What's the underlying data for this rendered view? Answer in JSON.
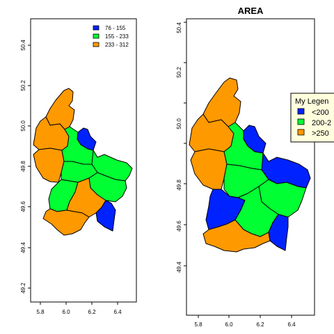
{
  "left_map": {
    "title": "",
    "x_ticks": [
      "5.8",
      "6.0",
      "6.2",
      "6.4"
    ],
    "y_ticks": [
      "49.2",
      "49.4",
      "49.6",
      "49.8",
      "50.0",
      "50.2",
      "50.4"
    ],
    "legend": {
      "title": "",
      "entries": [
        {
          "label": "76 - 155",
          "color": "#0022FF"
        },
        {
          "label": "155 - 233",
          "color": "#00FF33"
        },
        {
          "label": "233 - 312",
          "color": "#FF9900"
        }
      ]
    }
  },
  "right_map": {
    "title": "AREA",
    "x_ticks": [
      "5.8",
      "6.0",
      "6.2",
      "6.4"
    ],
    "y_ticks": [
      "49.4",
      "49.6",
      "49.8",
      "50.0",
      "50.2",
      "50.4"
    ],
    "legend": {
      "title": "My Legen",
      "entries": [
        {
          "label": "<200",
          "color": "#0022FF"
        },
        {
          "label": "200-2",
          "color": "#00FF33"
        },
        {
          "label": ">250",
          "color": "#FF9900"
        }
      ]
    }
  },
  "colors": {
    "blue": "#0022FF",
    "green": "#00FF33",
    "orange": "#FF9900",
    "legend_bg": "#FFFFDD"
  }
}
